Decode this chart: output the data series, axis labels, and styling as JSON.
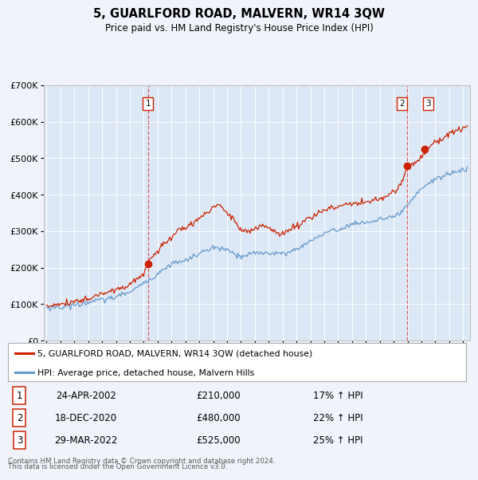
{
  "title": "5, GUARLFORD ROAD, MALVERN, WR14 3QW",
  "subtitle": "Price paid vs. HM Land Registry's House Price Index (HPI)",
  "legend_label_red": "5, GUARLFORD ROAD, MALVERN, WR14 3QW (detached house)",
  "legend_label_blue": "HPI: Average price, detached house, Malvern Hills",
  "footer_line1": "Contains HM Land Registry data © Crown copyright and database right 2024.",
  "footer_line2": "This data is licensed under the Open Government Licence v3.0.",
  "transactions": [
    {
      "num": "1",
      "date": "24-APR-2002",
      "price": "£210,000",
      "pct": "17% ↑ HPI",
      "year": 2002.3,
      "value": 210000
    },
    {
      "num": "2",
      "date": "18-DEC-2020",
      "price": "£480,000",
      "pct": "22% ↑ HPI",
      "year": 2020.96,
      "value": 480000
    },
    {
      "num": "3",
      "date": "29-MAR-2022",
      "price": "£525,000",
      "pct": "25% ↑ HPI",
      "year": 2022.24,
      "value": 525000
    }
  ],
  "vline_years": [
    2002.3,
    2020.96
  ],
  "box_labels": [
    {
      "num": "1",
      "year": 2002.3,
      "y": 650000
    },
    {
      "num": "2",
      "year": 2020.6,
      "y": 650000
    },
    {
      "num": "3",
      "year": 2022.5,
      "y": 650000
    }
  ],
  "ylim": [
    0,
    700000
  ],
  "yticks": [
    0,
    100000,
    200000,
    300000,
    400000,
    500000,
    600000,
    700000
  ],
  "ytick_labels": [
    "£0",
    "£100K",
    "£200K",
    "£300K",
    "£400K",
    "£500K",
    "£600K",
    "£700K"
  ],
  "xlim_start": 1994.8,
  "xlim_end": 2025.5,
  "bg_color": "#f0f4fa",
  "plot_bg_color": "#dce8f5",
  "red_color": "#cc2200",
  "blue_color": "#6699cc",
  "vline_color": "#dd4444",
  "grid_color": "#ffffff",
  "hpi_seed": 10,
  "red_seed": 20
}
